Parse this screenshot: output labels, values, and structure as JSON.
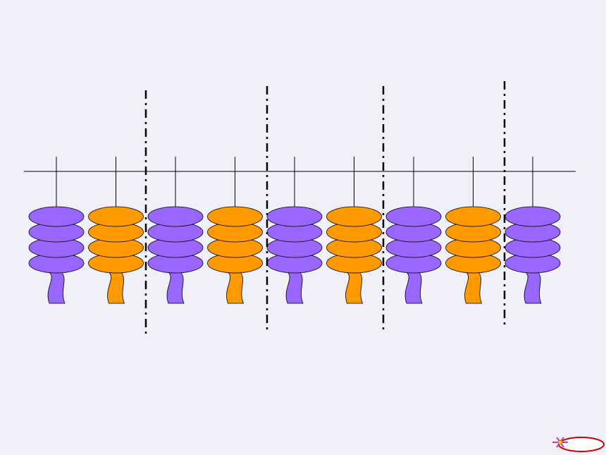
{
  "colors": {
    "background": "#f0f0fa",
    "purple_bead": "#9966ff",
    "orange_bead": "#ff9900",
    "outline": "#000000",
    "nav_ring": "#cc0000",
    "nav_star": "#cc33cc"
  },
  "rods": [
    {
      "color": "purple",
      "beads": 4
    },
    {
      "color": "orange",
      "beads": 4
    },
    {
      "color": "purple",
      "beads": 4
    },
    {
      "color": "orange",
      "beads": 4
    },
    {
      "color": "purple",
      "beads": 4
    },
    {
      "color": "orange",
      "beads": 4
    },
    {
      "color": "purple",
      "beads": 4
    },
    {
      "color": "orange",
      "beads": 4
    },
    {
      "color": "purple",
      "beads": 4
    }
  ],
  "separators_count": 4,
  "nav_button": {
    "icon": "next-slide-icon"
  }
}
